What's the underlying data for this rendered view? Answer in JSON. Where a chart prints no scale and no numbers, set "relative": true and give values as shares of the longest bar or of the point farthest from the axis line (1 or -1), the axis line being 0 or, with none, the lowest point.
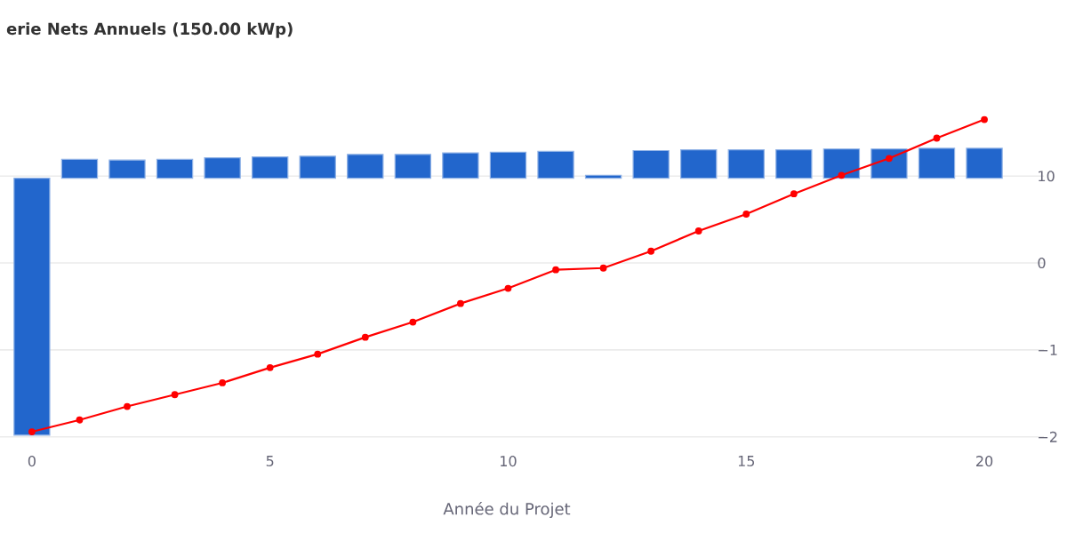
{
  "chart_data": {
    "type": "bar",
    "title": "erie Nets Annuels (150.00 kWp)",
    "xlabel": "Année du Projet",
    "x": [
      0,
      1,
      2,
      3,
      4,
      5,
      6,
      7,
      8,
      9,
      10,
      11,
      12,
      13,
      14,
      15,
      16,
      17,
      18,
      19,
      20
    ],
    "relative": true,
    "series": [
      {
        "color": "#2266cc",
        "values": [
          -1,
          0.074,
          0.071,
          0.074,
          0.08,
          0.083,
          0.086,
          0.093,
          0.093,
          0.099,
          0.102,
          0.105,
          0.012,
          0.108,
          0.111,
          0.111,
          0.111,
          0.114,
          0.114,
          0.117,
          0.117
        ]
      },
      {
        "type": "line",
        "axis": "y2",
        "color": "#ff0000",
        "marker": "circle",
        "line_style": "solid",
        "values": [
          -1,
          -0.93,
          -0.85,
          -0.78,
          -0.71,
          -0.62,
          -0.54,
          -0.44,
          -0.35,
          -0.24,
          -0.15,
          -0.04,
          -0.03,
          0.07,
          0.19,
          0.29,
          0.41,
          0.52,
          0.62,
          0.74,
          0.85
        ]
      }
    ],
    "xlim": [
      -0.67,
      21.25
    ],
    "xticks": [
      0,
      5,
      10,
      15,
      20
    ],
    "annotations": [
      "10",
      "0",
      "−1",
      "−2"
    ],
    "grid": "y"
  }
}
